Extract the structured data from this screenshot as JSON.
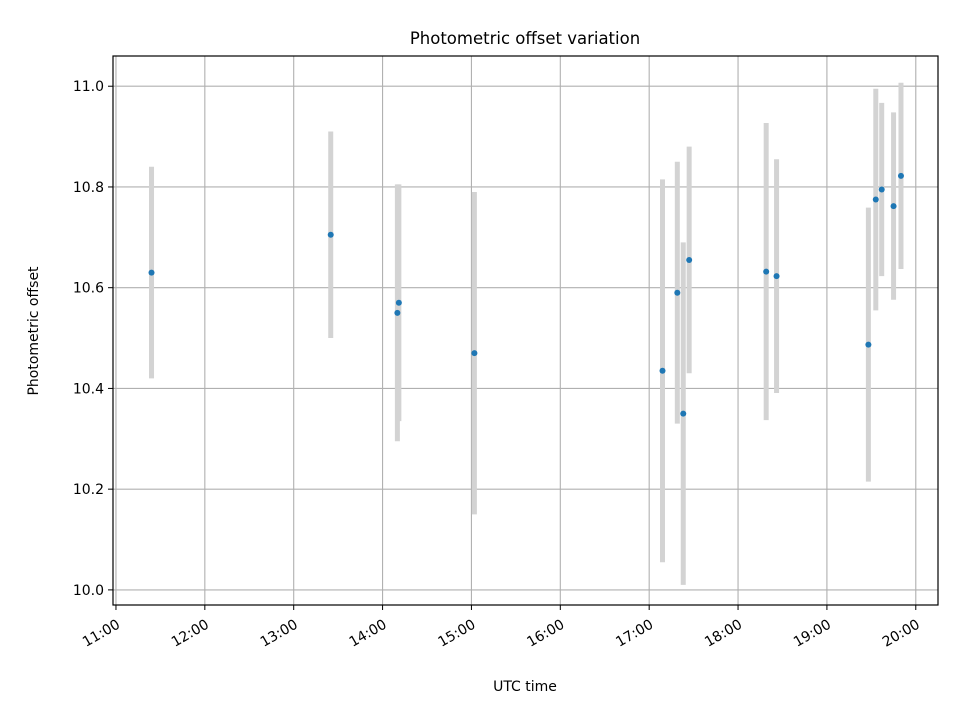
{
  "chart_data": {
    "type": "scatter",
    "title": "Photometric offset variation",
    "xlabel": "UTC time",
    "ylabel": "Photometric offset",
    "xlim": [
      "10:58",
      "20:15"
    ],
    "ylim": [
      9.97,
      11.06
    ],
    "x_ticks": [
      "11:00",
      "12:00",
      "13:00",
      "14:00",
      "15:00",
      "16:00",
      "17:00",
      "18:00",
      "19:00",
      "20:00"
    ],
    "y_ticks": [
      "10.0",
      "10.2",
      "10.4",
      "10.6",
      "10.8",
      "11.0"
    ],
    "grid": true,
    "colors": {
      "points": "#1f77b4",
      "errorbars": "#d3d3d3",
      "grid": "#b0b0b0"
    },
    "points": [
      {
        "t": "11:24",
        "y": 10.63,
        "err": 0.21
      },
      {
        "t": "13:25",
        "y": 10.705,
        "err": 0.205
      },
      {
        "t": "14:10",
        "y": 10.55,
        "err": 0.255
      },
      {
        "t": "14:11",
        "y": 10.57,
        "err": 0.235
      },
      {
        "t": "15:02",
        "y": 10.47,
        "err": 0.32
      },
      {
        "t": "17:09",
        "y": 10.435,
        "err": 0.38
      },
      {
        "t": "17:19",
        "y": 10.59,
        "err": 0.26
      },
      {
        "t": "17:23",
        "y": 10.35,
        "err": 0.34
      },
      {
        "t": "17:27",
        "y": 10.655,
        "err": 0.225
      },
      {
        "t": "18:19",
        "y": 10.632,
        "err": 0.295
      },
      {
        "t": "18:26",
        "y": 10.623,
        "err": 0.232
      },
      {
        "t": "19:28",
        "y": 10.487,
        "err": 0.272
      },
      {
        "t": "19:33",
        "y": 10.775,
        "err": 0.22
      },
      {
        "t": "19:37",
        "y": 10.795,
        "err": 0.172
      },
      {
        "t": "19:45",
        "y": 10.762,
        "err": 0.186
      },
      {
        "t": "19:50",
        "y": 10.822,
        "err": 0.185
      }
    ]
  }
}
